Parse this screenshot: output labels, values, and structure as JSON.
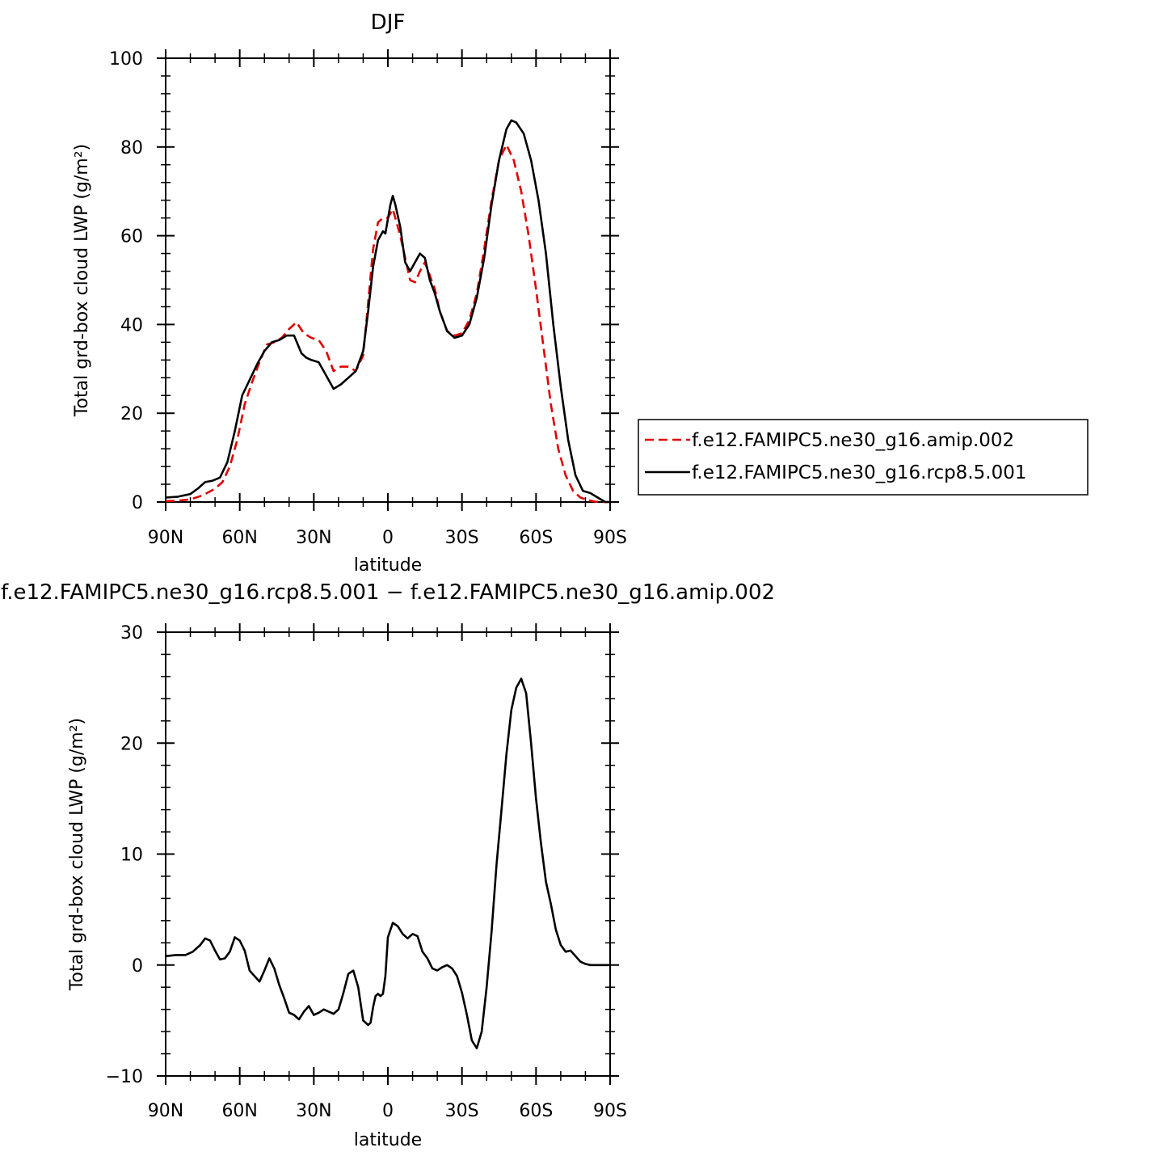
{
  "chart_data": [
    {
      "type": "line",
      "title": "DJF",
      "xlabel": "latitude",
      "ylabel": "Total grd-box cloud LWP (g/m²)",
      "xlim": [
        90,
        -90
      ],
      "ylim": [
        0,
        100
      ],
      "x_ticks": [
        90,
        60,
        30,
        0,
        -30,
        -60,
        -90
      ],
      "x_tick_labels": [
        "90N",
        "60N",
        "30N",
        "0",
        "30S",
        "60S",
        "90S"
      ],
      "y_ticks": [
        0,
        20,
        40,
        60,
        80,
        100
      ],
      "y_tick_labels": [
        "0",
        "20",
        "40",
        "60",
        "80",
        "100"
      ],
      "grid": false,
      "legend_position": "right",
      "series": [
        {
          "name": "f.e12.FAMIPC5.ne30_g16.amip.002",
          "color": "#e00000",
          "dash": "dashed",
          "x": [
            90,
            85,
            80,
            75,
            70,
            67,
            64,
            61,
            58,
            55,
            52,
            49,
            46,
            43,
            40,
            37,
            34,
            31,
            28,
            25,
            22,
            19,
            16,
            13,
            10,
            8,
            6,
            4,
            2,
            0,
            -2,
            -3,
            -5,
            -7,
            -9,
            -11,
            -13,
            -15,
            -17,
            -19,
            -21,
            -24,
            -27,
            -30,
            -33,
            -36,
            -39,
            -42,
            -45,
            -48,
            -51,
            -54,
            -57,
            -60,
            -63,
            -66,
            -69,
            -72,
            -75,
            -78,
            -81,
            -84,
            -87,
            -90
          ],
          "values": [
            0.2,
            0.3,
            0.6,
            1.5,
            3.0,
            4.5,
            8.0,
            14.0,
            22.0,
            27.0,
            31.5,
            35.5,
            36.0,
            37.0,
            39.0,
            40.5,
            38.0,
            37.0,
            36.5,
            34.0,
            29.5,
            30.5,
            30.5,
            29.5,
            33.0,
            45.0,
            57.0,
            63.0,
            64.0,
            64.0,
            66.0,
            64.0,
            60.0,
            55.0,
            50.0,
            49.5,
            52.0,
            54.0,
            51.0,
            48.0,
            43.0,
            38.5,
            37.5,
            38.0,
            41.0,
            47.0,
            57.0,
            68.0,
            77.0,
            80.5,
            77.0,
            70.0,
            60.0,
            48.0,
            35.0,
            22.0,
            12.0,
            6.0,
            2.5,
            1.0,
            0.4,
            0.1,
            0.0,
            0.0
          ]
        },
        {
          "name": "f.e12.FAMIPC5.ne30_g16.rcp8.5.001",
          "color": "#000000",
          "dash": "solid",
          "x": [
            90,
            85,
            80,
            77,
            74,
            71,
            68,
            65,
            62,
            59,
            56,
            53,
            50,
            47,
            44,
            41,
            38,
            35,
            33,
            31,
            28,
            25,
            22,
            19,
            16,
            13,
            10,
            8,
            6,
            4,
            2,
            1,
            -1,
            -2,
            -3,
            -5,
            -7,
            -9,
            -11,
            -13,
            -15,
            -17,
            -19,
            -21,
            -24,
            -27,
            -30,
            -33,
            -36,
            -39,
            -42,
            -45,
            -48,
            -50,
            -52,
            -55,
            -58,
            -61,
            -64,
            -67,
            -70,
            -73,
            -76,
            -79,
            -82,
            -85,
            -88,
            -90
          ],
          "values": [
            1.0,
            1.2,
            1.8,
            3.0,
            4.5,
            4.8,
            5.5,
            9.0,
            16.0,
            24.0,
            27.5,
            31.0,
            34.0,
            36.0,
            36.5,
            37.5,
            37.5,
            33.5,
            32.5,
            32.0,
            31.5,
            28.5,
            25.5,
            26.5,
            28.0,
            29.5,
            34.0,
            43.0,
            53.0,
            59.0,
            61.0,
            60.5,
            67.0,
            69.0,
            67.0,
            62.0,
            54.0,
            52.0,
            54.0,
            56.0,
            55.0,
            50.0,
            47.0,
            43.0,
            38.5,
            37.0,
            37.5,
            40.0,
            46.0,
            55.0,
            67.0,
            77.0,
            84.0,
            86.0,
            85.5,
            83.0,
            77.0,
            68.0,
            56.0,
            40.0,
            26.0,
            14.0,
            6.0,
            2.5,
            2.0,
            1.0,
            0.0,
            0.0
          ]
        }
      ]
    },
    {
      "type": "line",
      "title": "f.e12.FAMIPC5.ne30_g16.rcp8.5.001 − f.e12.FAMIPC5.ne30_g16.amip.002",
      "xlabel": "latitude",
      "ylabel": "Total grd-box cloud LWP (g/m²)",
      "xlim": [
        90,
        -90
      ],
      "ylim": [
        -10,
        30
      ],
      "x_ticks": [
        90,
        60,
        30,
        0,
        -30,
        -60,
        -90
      ],
      "x_tick_labels": [
        "90N",
        "60N",
        "30N",
        "0",
        "30S",
        "60S",
        "90S"
      ],
      "y_ticks": [
        -10,
        0,
        10,
        20,
        30
      ],
      "y_tick_labels": [
        "−10",
        "0",
        "10",
        "20",
        "30"
      ],
      "grid": false,
      "series": [
        {
          "color": "#000000",
          "dash": "solid",
          "x": [
            90,
            86,
            82,
            79,
            76,
            74,
            72,
            70,
            68,
            66,
            64,
            62,
            60,
            58,
            56,
            54,
            52,
            50,
            48,
            46,
            44,
            42,
            40,
            38,
            36,
            34,
            32,
            30,
            28,
            26,
            24,
            22,
            20,
            18,
            16,
            14,
            12,
            10,
            8,
            7,
            6,
            5,
            4,
            3,
            2,
            1,
            0,
            -2,
            -4,
            -6,
            -8,
            -10,
            -12,
            -14,
            -16,
            -18,
            -20,
            -22,
            -24,
            -26,
            -28,
            -30,
            -32,
            -34,
            -36,
            -38,
            -40,
            -42,
            -44,
            -46,
            -48,
            -50,
            -52,
            -54,
            -56,
            -58,
            -60,
            -62,
            -64,
            -66,
            -68,
            -70,
            -72,
            -74,
            -76,
            -78,
            -80,
            -82,
            -84,
            -86,
            -88,
            -90
          ],
          "values": [
            0.8,
            0.9,
            0.9,
            1.2,
            1.8,
            2.4,
            2.2,
            1.3,
            0.5,
            0.6,
            1.2,
            2.5,
            2.2,
            1.3,
            -0.5,
            -1.0,
            -1.5,
            -0.5,
            0.6,
            -0.3,
            -1.8,
            -3.0,
            -4.3,
            -4.5,
            -4.9,
            -4.2,
            -3.7,
            -4.5,
            -4.3,
            -4.0,
            -4.2,
            -4.4,
            -4.0,
            -2.5,
            -0.8,
            -0.5,
            -2.0,
            -5.0,
            -5.4,
            -5.2,
            -3.8,
            -2.8,
            -2.6,
            -2.8,
            -2.6,
            -1.0,
            2.5,
            3.8,
            3.5,
            2.8,
            2.4,
            2.8,
            2.6,
            1.2,
            0.6,
            -0.3,
            -0.5,
            -0.2,
            0.0,
            -0.3,
            -1.0,
            -2.5,
            -4.5,
            -6.8,
            -7.5,
            -6.0,
            -2.0,
            3.0,
            9.0,
            14.0,
            19.0,
            23.0,
            25.0,
            25.8,
            24.5,
            20.0,
            15.0,
            11.0,
            7.5,
            5.5,
            3.2,
            1.8,
            1.2,
            1.3,
            0.8,
            0.3,
            0.1,
            0.0,
            0.0,
            0.0,
            0.0,
            0.0
          ]
        }
      ]
    }
  ]
}
